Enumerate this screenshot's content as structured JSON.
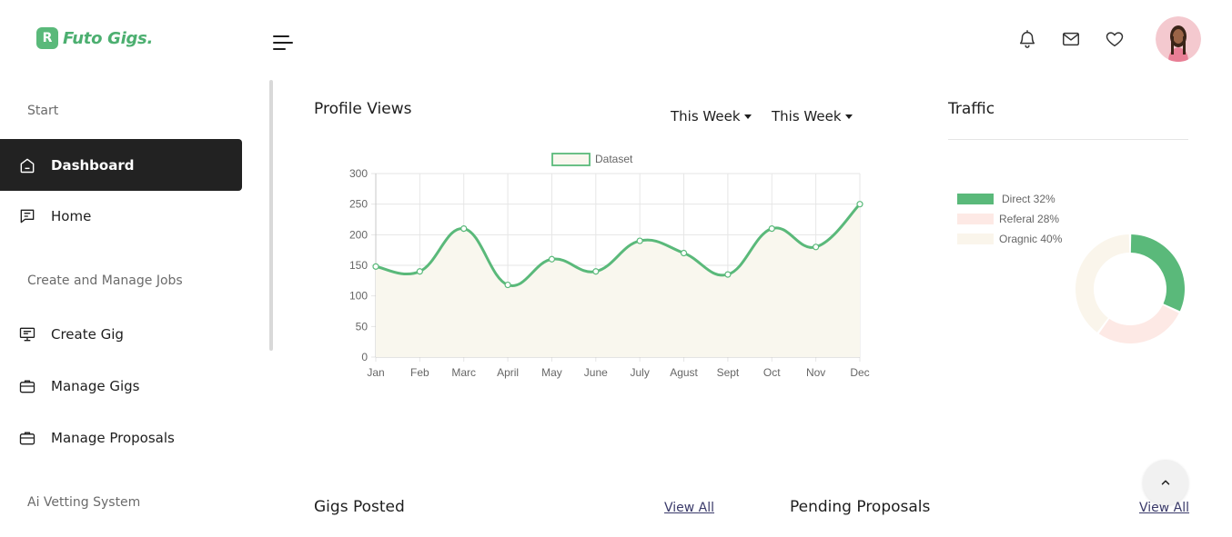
{
  "brand": {
    "name": "Futo Gigs.",
    "mark": "R",
    "accent": "#5ab97a"
  },
  "header": {
    "icons": [
      "bell-icon",
      "mail-icon",
      "heart-icon"
    ]
  },
  "sidebar": {
    "sections": [
      {
        "title": "Start"
      },
      {
        "title": "Create and Manage Jobs"
      },
      {
        "title": "Ai Vetting System"
      }
    ],
    "items": [
      {
        "label": "Dashboard",
        "icon": "home-icon",
        "active": true
      },
      {
        "label": "Home",
        "icon": "chat-icon",
        "active": false
      },
      {
        "label": "Create Gig",
        "icon": "presentation-icon",
        "active": false
      },
      {
        "label": "Manage Gigs",
        "icon": "briefcase-icon",
        "active": false
      },
      {
        "label": "Manage Proposals",
        "icon": "briefcase-icon",
        "active": false
      }
    ]
  },
  "profile_views": {
    "title": "Profile Views",
    "filters": [
      "This Week",
      "This Week"
    ]
  },
  "traffic": {
    "title": "Traffic"
  },
  "gigs_posted": {
    "title": "Gigs Posted",
    "view_all": "View All"
  },
  "pending_proposals": {
    "title": "Pending Proposals",
    "view_all": "View All"
  },
  "chart_data": [
    {
      "type": "line",
      "categories": [
        "Jan",
        "Feb",
        "Marc",
        "April",
        "May",
        "June",
        "July",
        "Agust",
        "Sept",
        "Oct",
        "Nov",
        "Dec"
      ],
      "series": [
        {
          "name": "Dataset",
          "values": [
            148,
            140,
            210,
            118,
            160,
            140,
            190,
            170,
            135,
            210,
            180,
            250
          ],
          "color": "#5ab97a",
          "fill": "#f9f7ee"
        }
      ],
      "ylim": [
        0,
        300
      ],
      "yticks": [
        0,
        50,
        100,
        150,
        200,
        250,
        300
      ],
      "grid": true,
      "legend": "top-center"
    },
    {
      "type": "pie",
      "labels": [
        "Direct",
        "Referal",
        "Oragnic"
      ],
      "legend_labels": [
        "Direct 32%",
        "Referal 28%",
        "Oragnic 40%"
      ],
      "values": [
        32,
        28,
        40
      ],
      "colors": [
        "#5ab97a",
        "#fde9e5",
        "#faf5eb"
      ],
      "legend": "top-left"
    }
  ]
}
